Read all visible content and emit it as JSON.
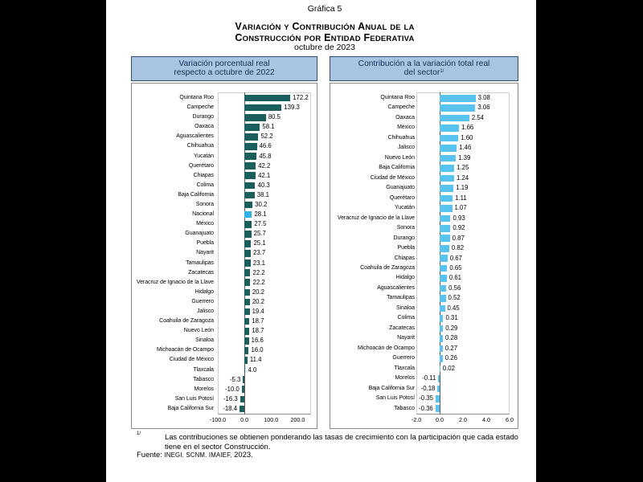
{
  "title": {
    "line1": "Gráfica 5",
    "line2": "Variación y Contribución Anual de la",
    "line3": "Construcción por Entidad Federativa",
    "line4": "octubre de 2023"
  },
  "footnote": {
    "marker": "1/",
    "text_line1": "Las contribuciones se obtienen ponderando las tasas de crecimiento con la participación que cada estado",
    "text_line2": "tiene en el sector Construcción.",
    "source_prefix": "Fuente:",
    "source_body": "INEGI. SCNM. IMAIEF,",
    "source_year": "2023."
  },
  "colors": {
    "frame": "#000000",
    "background": "#ffffff",
    "header_fill": "#a9c4e1",
    "header_border": "#2c4d6e",
    "teal_bar": "#1a5f5b",
    "national_bar": "#2fb3e7",
    "contribution_bar": "#58c3ef"
  },
  "chart_data": [
    {
      "type": "bar",
      "orientation": "horizontal",
      "header_lines": [
        "Variación porcentual real",
        "respecto a octubre de 2022"
      ],
      "xlim": [
        -100,
        250
      ],
      "xtick_values": [
        -100,
        0,
        100,
        200
      ],
      "xticks": [
        "-100.0",
        "0.0",
        "100.0",
        "200.0"
      ],
      "decimals": 1,
      "bar_color": "#1a5f5b",
      "highlight_label": "Nacional",
      "highlight_color": "#2fb3e7",
      "grid": false,
      "legend": false,
      "categories": [
        "Quintana Roo",
        "Campeche",
        "Durango",
        "Oaxaca",
        "Aguascalientes",
        "Chihuahua",
        "Yucatán",
        "Querétaro",
        "Chiapas",
        "Colima",
        "Baja California",
        "Sonora",
        "Nacional",
        "México",
        "Guanajuato",
        "Puebla",
        "Nayarit",
        "Tamaulipas",
        "Zacatecas",
        "Veracruz de Ignacio de la Llave",
        "Hidalgo",
        "Guerrero",
        "Jalisco",
        "Coahuila de Zaragoza",
        "Nuevo León",
        "Sinaloa",
        "Michoacán de Ocampo",
        "Ciudad de México",
        "Tlaxcala",
        "Tabasco",
        "Morelos",
        "San Luis Potosí",
        "Baja California Sur"
      ],
      "values": [
        172.2,
        139.3,
        80.5,
        58.1,
        52.2,
        46.6,
        45.8,
        42.2,
        42.1,
        40.3,
        38.1,
        30.2,
        28.1,
        27.5,
        25.7,
        25.1,
        23.7,
        23.1,
        22.2,
        22.2,
        20.2,
        20.2,
        19.4,
        18.7,
        18.7,
        16.6,
        16.0,
        11.4,
        4.0,
        -5.3,
        -10.0,
        -16.3,
        -18.4
      ]
    },
    {
      "type": "bar",
      "orientation": "horizontal",
      "header_lines": [
        "Contribución a la variación total real",
        "del sector"
      ],
      "header_sup": "1/",
      "xlim": [
        -2,
        6
      ],
      "xtick_values": [
        -2,
        0,
        2,
        4,
        6
      ],
      "xticks": [
        "-2.0",
        "0.0",
        "2.0",
        "4.0",
        "6.0"
      ],
      "decimals": 2,
      "bar_color": "#58c3ef",
      "grid": false,
      "legend": false,
      "categories": [
        "Quintana Roo",
        "Campeche",
        "Oaxaca",
        "México",
        "Chihuahua",
        "Jalisco",
        "Nuevo León",
        "Baja California",
        "Ciudad de México",
        "Guanajuato",
        "Querétaro",
        "Yucatán",
        "Veracruz de Ignacio de la Llave",
        "Sonora",
        "Durango",
        "Puebla",
        "Chiapas",
        "Coahuila de Zaragoza",
        "Hidalgo",
        "Aguascalientes",
        "Tamaulipas",
        "Sinaloa",
        "Colima",
        "Zacatecas",
        "Nayarit",
        "Michoacán de Ocampo",
        "Guerrero",
        "Tlaxcala",
        "Morelos",
        "Baja California Sur",
        "San Luis Potosí",
        "Tabasco"
      ],
      "values": [
        3.08,
        3.06,
        2.54,
        1.66,
        1.6,
        1.46,
        1.39,
        1.25,
        1.24,
        1.19,
        1.11,
        1.07,
        0.93,
        0.92,
        0.87,
        0.82,
        0.67,
        0.65,
        0.61,
        0.56,
        0.52,
        0.45,
        0.31,
        0.29,
        0.28,
        0.27,
        0.26,
        0.02,
        -0.11,
        -0.18,
        -0.35,
        -0.36
      ]
    }
  ]
}
